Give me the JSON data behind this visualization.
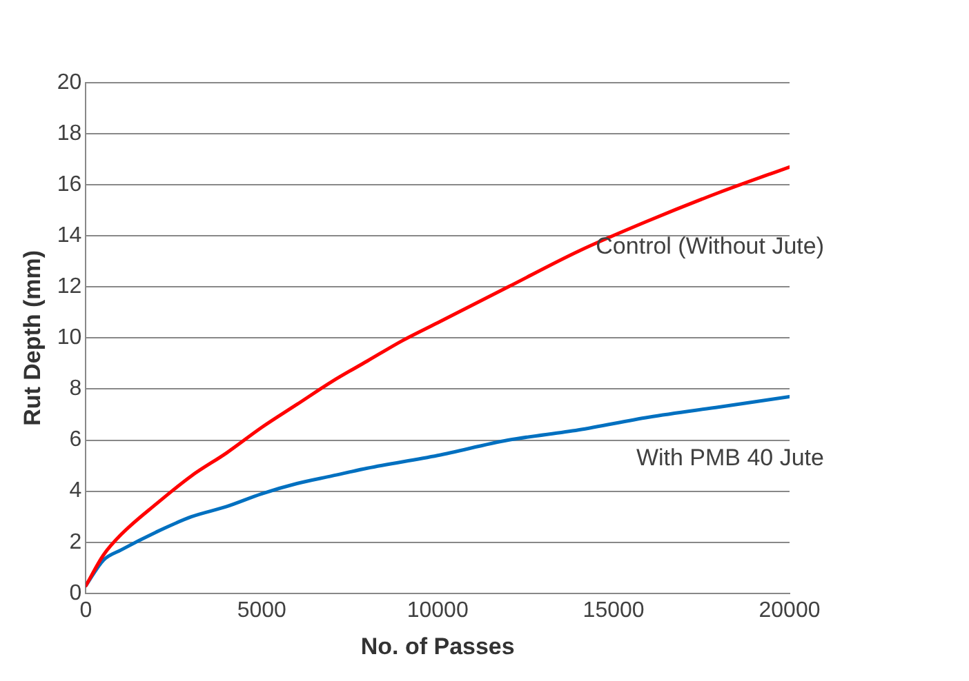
{
  "chart_data": {
    "type": "line",
    "xlabel": "No. of Passes",
    "ylabel": "Rut Depth (mm)",
    "xlim": [
      0,
      20000
    ],
    "xticks": [
      0,
      5000,
      10000,
      15000,
      20000
    ],
    "ylim": [
      0,
      20
    ],
    "yticks": [
      0,
      2,
      4,
      6,
      8,
      10,
      12,
      14,
      16,
      18,
      20
    ],
    "grid": "y",
    "legend": false,
    "marker": "none",
    "line_style": "solid",
    "series": [
      {
        "name": "Control (Without Jute)",
        "color": "#ff0000",
        "x": [
          0,
          500,
          1000,
          2000,
          3000,
          4000,
          5000,
          6000,
          7000,
          8000,
          9000,
          10000,
          12000,
          14000,
          16000,
          18000,
          20000
        ],
        "values": [
          0.3,
          1.5,
          2.3,
          3.5,
          4.6,
          5.5,
          6.5,
          7.4,
          8.3,
          9.1,
          9.9,
          10.6,
          12.0,
          13.4,
          14.6,
          15.7,
          16.7
        ]
      },
      {
        "name": "With PMB 40 Jute",
        "color": "#0070c0",
        "x": [
          0,
          500,
          1000,
          2000,
          3000,
          4000,
          5000,
          6000,
          7000,
          8000,
          10000,
          12000,
          14000,
          16000,
          18000,
          20000
        ],
        "values": [
          0.3,
          1.3,
          1.7,
          2.4,
          3.0,
          3.4,
          3.9,
          4.3,
          4.6,
          4.9,
          5.4,
          6.0,
          6.4,
          6.9,
          7.3,
          7.7
        ]
      }
    ]
  }
}
